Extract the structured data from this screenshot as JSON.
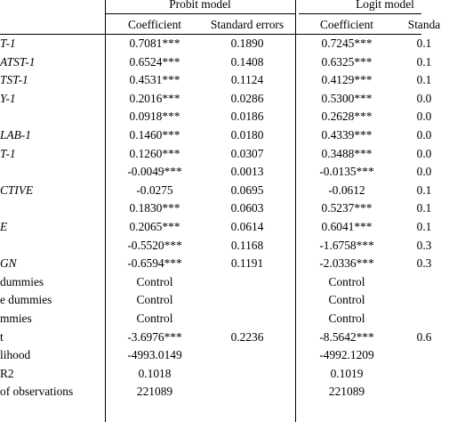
{
  "header": {
    "probit_group": "Probit model",
    "logit_group": "Logit model",
    "col1": "Coefficient",
    "col2": "Standard errors",
    "col3": "Coefficient",
    "col4": "Standa"
  },
  "rows": [
    {
      "label": "T-1",
      "probit_coef": "0.7081***",
      "probit_se": "0.1890",
      "logit_coef": "0.7245***",
      "logit_se": "0.1"
    },
    {
      "label": "ATST-1",
      "probit_coef": "0.6524***",
      "probit_se": "0.1408",
      "logit_coef": "0.6325***",
      "logit_se": "0.1"
    },
    {
      "label": "TST-1",
      "probit_coef": "0.4531***",
      "probit_se": "0.1124",
      "logit_coef": "0.4129***",
      "logit_se": "0.1"
    },
    {
      "label": "Y-1",
      "probit_coef": "0.2016***",
      "probit_se": "0.0286",
      "logit_coef": "0.5300***",
      "logit_se": "0.0"
    },
    {
      "label": "",
      "probit_coef": "0.0918***",
      "probit_se": "0.0186",
      "logit_coef": "0.2628***",
      "logit_se": "0.0"
    },
    {
      "label": "LAB-1",
      "probit_coef": "0.1460***",
      "probit_se": "0.0180",
      "logit_coef": "0.4339***",
      "logit_se": "0.0"
    },
    {
      "label": "T-1",
      "probit_coef": "0.1260***",
      "probit_se": "0.0307",
      "logit_coef": "0.3488***",
      "logit_se": "0.0"
    },
    {
      "label": "",
      "probit_coef": "-0.0049***",
      "probit_se": "0.0013",
      "logit_coef": "-0.0135***",
      "logit_se": "0.0"
    },
    {
      "label": "CTIVE",
      "probit_coef": "-0.0275",
      "probit_se": "0.0695",
      "logit_coef": "-0.0612",
      "logit_se": "0.1"
    },
    {
      "label": "",
      "probit_coef": "0.1830***",
      "probit_se": "0.0603",
      "logit_coef": "0.5237***",
      "logit_se": "0.1"
    },
    {
      "label": "E",
      "probit_coef": "0.2065***",
      "probit_se": "0.0614",
      "logit_coef": "0.6041***",
      "logit_se": "0.1"
    },
    {
      "label": "",
      "probit_coef": "-0.5520***",
      "probit_se": "0.1168",
      "logit_coef": "-1.6758***",
      "logit_se": "0.3"
    },
    {
      "label": "GN",
      "probit_coef": "-0.6594***",
      "probit_se": "0.1191",
      "logit_coef": "-2.0336***",
      "logit_se": "0.3"
    },
    {
      "label": "dummies",
      "probit_coef": "Control",
      "probit_se": "",
      "logit_coef": "Control",
      "logit_se": ""
    },
    {
      "label": "e dummies",
      "probit_coef": "Control",
      "probit_se": "",
      "logit_coef": "Control",
      "logit_se": ""
    },
    {
      "label": "mmies",
      "probit_coef": "Control",
      "probit_se": "",
      "logit_coef": "Control",
      "logit_se": ""
    },
    {
      "label": "t",
      "probit_coef": "-3.6976***",
      "probit_se": "0.2236",
      "logit_coef": "-8.5642***",
      "logit_se": "0.6"
    },
    {
      "label": "lihood",
      "probit_coef": "-4993.0149",
      "probit_se": "",
      "logit_coef": "-4992.1209",
      "logit_se": ""
    },
    {
      "label": "R2",
      "probit_coef": "0.1018",
      "probit_se": "",
      "logit_coef": "0.1019",
      "logit_se": ""
    },
    {
      "label": "of observations",
      "probit_coef": "221089",
      "probit_se": "",
      "logit_coef": "221089",
      "logit_se": ""
    }
  ]
}
